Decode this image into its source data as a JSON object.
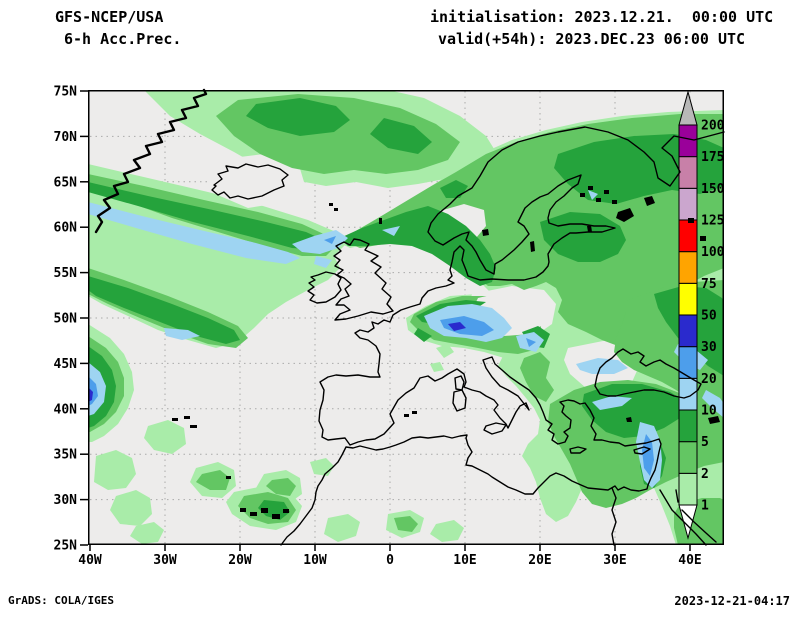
{
  "header": {
    "model": "GFS-NCEP/USA",
    "product": "6-h Acc.Prec.",
    "init_line": "initialisation: 2023.12.21.  00:00 UTC",
    "valid_line": "valid(+54h): 2023.DEC.23 06:00 UTC"
  },
  "map": {
    "lat_ticks": [
      "75N",
      "70N",
      "65N",
      "60N",
      "55N",
      "50N",
      "45N",
      "40N",
      "35N",
      "30N",
      "25N"
    ],
    "lon_ticks": [
      "40W",
      "30W",
      "20W",
      "10W",
      "0",
      "10E",
      "20E",
      "30E",
      "40E"
    ],
    "background_color": "#EDECEB",
    "grid_color": "#AAAAAA",
    "coastline_color": "#000000"
  },
  "colorbar": {
    "tick_values": [
      "1",
      "2",
      "5",
      "10",
      "20",
      "30",
      "50",
      "75",
      "100",
      "125",
      "150",
      "175",
      "200"
    ],
    "segment_colors_bottom_to_top": [
      "#A9ECA9",
      "#63C663",
      "#25A33C",
      "#9ED4F2",
      "#4D9EEB",
      "#2A2ACD",
      "#FFFF00",
      "#FFA400",
      "#FF0000",
      "#CBA6CE",
      "#C880A8",
      "#9A009A"
    ],
    "above_max_color": "#B8B8B8",
    "below_min_color": "#FFFFFF",
    "palette": {
      "1-2": "#A9ECA9",
      "2-5": "#63C663",
      "5-10": "#25A33C",
      "10-20": "#9ED4F2",
      "20-30": "#4D9EEB",
      "30-50": "#2A2ACD",
      "50-75": "#FFFF00",
      "75-100": "#FFA400",
      "100-125": "#FF0000",
      "125-150": "#CBA6CE",
      "150-175": "#C880A8",
      "175-200": "#9A009A"
    }
  },
  "footer": {
    "left": "GrADS: COLA/IGES",
    "right": "2023-12-21-04:17"
  }
}
